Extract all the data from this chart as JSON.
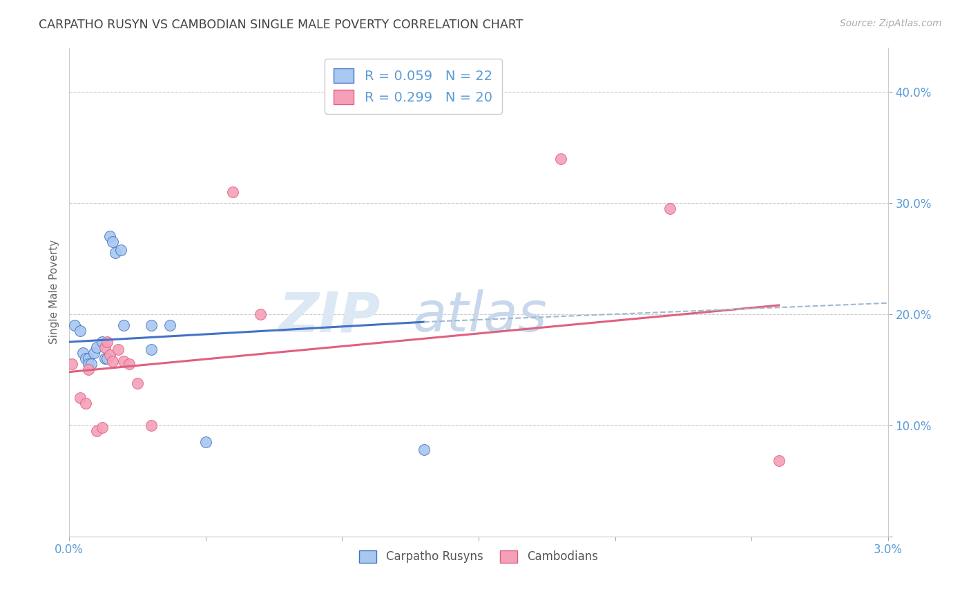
{
  "title": "CARPATHO RUSYN VS CAMBODIAN SINGLE MALE POVERTY CORRELATION CHART",
  "source": "Source: ZipAtlas.com",
  "ylabel_label": "Single Male Poverty",
  "xlim": [
    0.0,
    0.03
  ],
  "ylim": [
    0.0,
    0.44
  ],
  "xticks": [
    0.0,
    0.005,
    0.01,
    0.015,
    0.02,
    0.025,
    0.03
  ],
  "xtick_labels": [
    "0.0%",
    "",
    "",
    "",
    "",
    "",
    "3.0%"
  ],
  "yticks": [
    0.0,
    0.1,
    0.2,
    0.3,
    0.4
  ],
  "ytick_labels": [
    "",
    "10.0%",
    "20.0%",
    "30.0%",
    "40.0%"
  ],
  "legend_r1": "R = 0.059",
  "legend_n1": "N = 22",
  "legend_r2": "R = 0.299",
  "legend_n2": "N = 20",
  "color_blue": "#a8c8f0",
  "color_pink": "#f4a0b8",
  "line_blue": "#4472c4",
  "line_pink": "#e06080",
  "line_dashed_color": "#a0b8d0",
  "title_color": "#404040",
  "axis_color": "#5b9bd5",
  "watermark_color": "#d0ddf0",
  "grid_color": "#cccccc",
  "blue_scatter": [
    [
      0.0002,
      0.19
    ],
    [
      0.0004,
      0.185
    ],
    [
      0.0005,
      0.165
    ],
    [
      0.0006,
      0.16
    ],
    [
      0.0007,
      0.16
    ],
    [
      0.0007,
      0.155
    ],
    [
      0.0008,
      0.155
    ],
    [
      0.0009,
      0.165
    ],
    [
      0.001,
      0.17
    ],
    [
      0.0012,
      0.175
    ],
    [
      0.0013,
      0.16
    ],
    [
      0.0014,
      0.16
    ],
    [
      0.0015,
      0.27
    ],
    [
      0.0016,
      0.265
    ],
    [
      0.0017,
      0.255
    ],
    [
      0.0019,
      0.258
    ],
    [
      0.002,
      0.19
    ],
    [
      0.003,
      0.19
    ],
    [
      0.003,
      0.168
    ],
    [
      0.0037,
      0.19
    ],
    [
      0.005,
      0.085
    ],
    [
      0.013,
      0.078
    ]
  ],
  "pink_scatter": [
    [
      0.0001,
      0.155
    ],
    [
      0.0004,
      0.125
    ],
    [
      0.0006,
      0.12
    ],
    [
      0.0007,
      0.15
    ],
    [
      0.001,
      0.095
    ],
    [
      0.0012,
      0.098
    ],
    [
      0.0013,
      0.17
    ],
    [
      0.0014,
      0.175
    ],
    [
      0.0015,
      0.163
    ],
    [
      0.0016,
      0.158
    ],
    [
      0.0018,
      0.168
    ],
    [
      0.002,
      0.158
    ],
    [
      0.0022,
      0.155
    ],
    [
      0.0025,
      0.138
    ],
    [
      0.003,
      0.1
    ],
    [
      0.006,
      0.31
    ],
    [
      0.007,
      0.2
    ],
    [
      0.018,
      0.34
    ],
    [
      0.022,
      0.295
    ],
    [
      0.026,
      0.068
    ]
  ],
  "blue_line_x": [
    0.0,
    0.013
  ],
  "blue_line_y": [
    0.175,
    0.193
  ],
  "pink_line_x": [
    0.0,
    0.026
  ],
  "pink_line_y": [
    0.148,
    0.208
  ],
  "dashed_line_x": [
    0.013,
    0.03
  ],
  "dashed_line_y": [
    0.193,
    0.21
  ]
}
